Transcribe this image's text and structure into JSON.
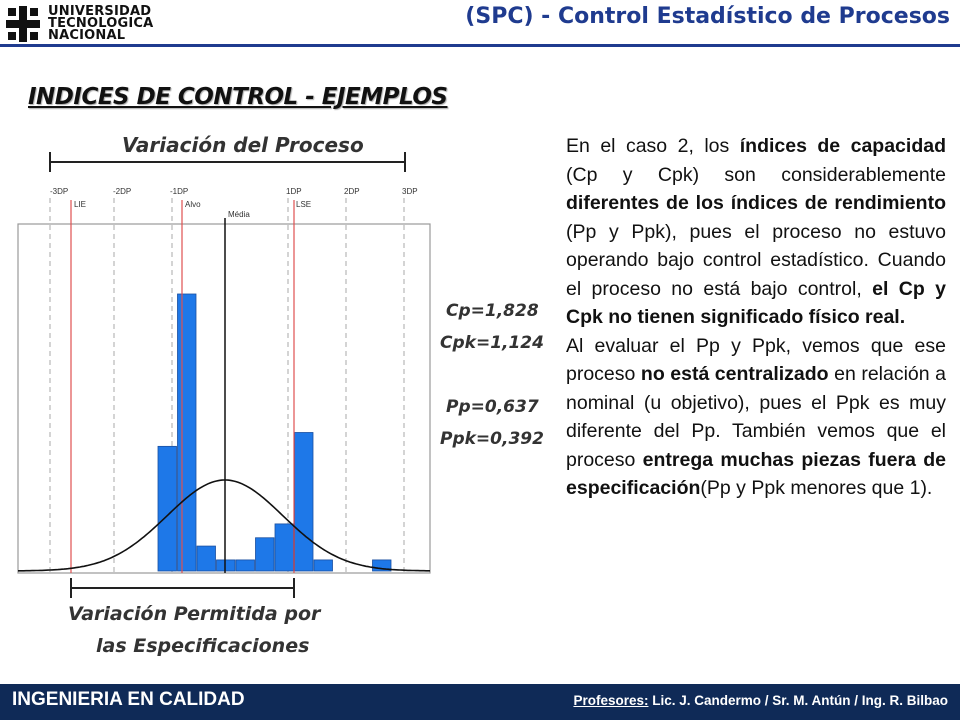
{
  "header": {
    "logo_lines": [
      "UNIVERSIDAD",
      "TECNOLOGICA",
      "NACIONAL"
    ],
    "title": "(SPC) - Control Estadístico de Procesos",
    "accent": "#1f3b8f"
  },
  "section_title": "INDICES DE CONTROL - EJEMPLOS",
  "figure": {
    "process_variation_label": "Variación del Proceso",
    "allowed_variation_label_line1": "Variación Permitida por",
    "allowed_variation_label_line2": "las Especificaciones",
    "dp_ticks": [
      "-3DP",
      "-2DP",
      "-1DP",
      "1DP",
      "2DP",
      "3DP"
    ],
    "spec_labels": [
      "LIE",
      "Alvo",
      "LSE"
    ],
    "mean_label": "Média",
    "indices": {
      "cp": "Cp=1,828",
      "cpk": "Cpk=1,124",
      "pp": "Pp=0,637",
      "ppk": "Ppk=0,392"
    },
    "histogram_heights": [
      0.45,
      1.0,
      0.09,
      0.04,
      0.04,
      0.12,
      0.17,
      0.5,
      0.04,
      0.0,
      0.0,
      0.04
    ],
    "bar_color": "#1e78e8",
    "spec_line_color": "#e05050"
  },
  "body_text": {
    "p1_a": "En el caso 2, los ",
    "p1_b": "índices de capacidad",
    "p1_c": " (Cp y Cpk) son considerablemente ",
    "p1_d": "diferentes de los índices de rendimiento",
    "p1_e": " (Pp y Ppk), pues el proceso no estuvo operando bajo control estadístico. Cuando el proceso no está bajo control, ",
    "p1_f": "el Cp y Cpk no tienen significado físico real.",
    "p2_a": "Al evaluar el Pp y Ppk, vemos que ese proceso ",
    "p2_b": "no está centralizado",
    "p2_c": " en relación a nominal (u objetivo), pues el Ppk es muy diferente del Pp. También vemos que el proceso ",
    "p2_d": "entrega muchas piezas fuera de especificación",
    "p2_e": "(Pp y Ppk menores que 1)."
  },
  "footer": {
    "left": "INGENIERIA EN CALIDAD",
    "right_label": "Profesores:",
    "right_names": " Lic. J. Candermo / Sr. M. Antún / Ing. R. Bilbao",
    "bg": "#0f2a57"
  }
}
